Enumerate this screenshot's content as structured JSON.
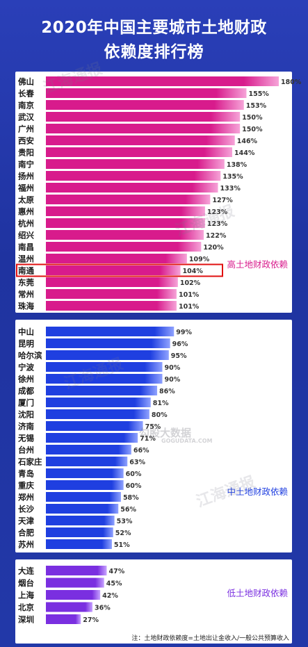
{
  "title": {
    "line1": "2020年中国主要城市土地财政",
    "line2": "依赖度排行榜"
  },
  "colors": {
    "high": "#d81b8c",
    "mid": "#1f3fe0",
    "low": "#7a2fe0",
    "highlight_box": "#e01010"
  },
  "chart_data": [
    {
      "type": "bar",
      "orientation": "horizontal",
      "group": "高土地财政依赖",
      "categories": [
        "佛山",
        "长春",
        "南京",
        "武汉",
        "广州",
        "西安",
        "贵阳",
        "南宁",
        "扬州",
        "福州",
        "太原",
        "惠州",
        "杭州",
        "绍兴",
        "南昌",
        "温州",
        "南通",
        "东莞",
        "常州",
        "珠海"
      ],
      "values": [
        180,
        155,
        153,
        150,
        150,
        146,
        144,
        138,
        135,
        133,
        127,
        123,
        123,
        122,
        120,
        109,
        104,
        102,
        101,
        101
      ],
      "unit": "%",
      "highlighted": "南通"
    },
    {
      "type": "bar",
      "orientation": "horizontal",
      "group": "中土地财政依赖",
      "categories": [
        "中山",
        "昆明",
        "哈尔滨",
        "宁波",
        "徐州",
        "成都",
        "厦门",
        "沈阳",
        "济南",
        "无锡",
        "台州",
        "石家庄",
        "青岛",
        "重庆",
        "郑州",
        "长沙",
        "天津",
        "合肥",
        "苏州"
      ],
      "values": [
        99,
        96,
        95,
        90,
        90,
        86,
        81,
        80,
        75,
        71,
        66,
        63,
        60,
        60,
        58,
        56,
        53,
        52,
        51
      ],
      "unit": "%"
    },
    {
      "type": "bar",
      "orientation": "horizontal",
      "group": "低土地财政依赖",
      "categories": [
        "大连",
        "烟台",
        "上海",
        "北京",
        "深圳"
      ],
      "values": [
        47,
        45,
        42,
        36,
        27
      ],
      "unit": "%"
    }
  ],
  "footnote": "注：土地财政依赖度=土地出让金收入/一般公共预算收入",
  "watermarks": {
    "brand": "江海通报",
    "site": "GOGUDATA.COM",
    "site_cn": "勾股大数据"
  }
}
